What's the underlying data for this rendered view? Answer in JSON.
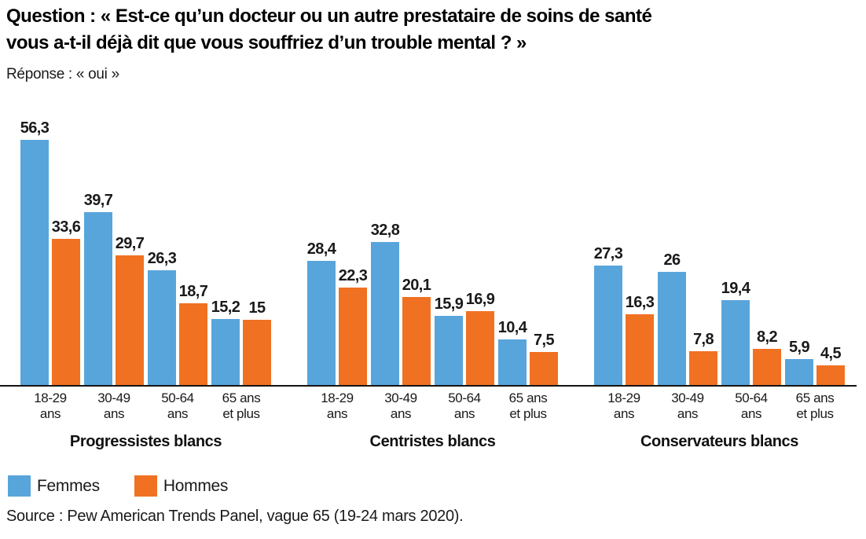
{
  "chart_data": {
    "type": "bar",
    "title": "Question : « Est-ce qu’un docteur ou un autre prestataire de soins de santé vous a-t-il déjà dit que vous souffriez d’un trouble mental ? »",
    "title_lines": [
      "Question : « Est-ce qu’un docteur ou un autre prestataire de soins de santé",
      "vous a-t-il déjà dit que vous souffriez d’un trouble mental ? »"
    ],
    "subtitle": "Réponse : « oui »",
    "source": "Source : Pew American Trends Panel, vague 65 (19-24 mars 2020).",
    "categories": [
      "18-29 ans",
      "30-49 ans",
      "50-64 ans",
      "65 ans et plus"
    ],
    "category_lines": [
      [
        "18-29",
        "ans"
      ],
      [
        "30-49",
        "ans"
      ],
      [
        "50-64",
        "ans"
      ],
      [
        "65 ans",
        "et plus"
      ]
    ],
    "groups": [
      {
        "label": "Progressistes blancs",
        "series": [
          {
            "name": "Femmes",
            "values": [
              56.3,
              39.7,
              26.3,
              15.2
            ]
          },
          {
            "name": "Hommes",
            "values": [
              33.6,
              29.7,
              18.7,
              15
            ]
          }
        ]
      },
      {
        "label": "Centristes blancs",
        "series": [
          {
            "name": "Femmes",
            "values": [
              28.4,
              32.8,
              15.9,
              10.4
            ]
          },
          {
            "name": "Hommes",
            "values": [
              22.3,
              20.1,
              16.9,
              7.5
            ]
          }
        ]
      },
      {
        "label": "Conservateurs blancs",
        "series": [
          {
            "name": "Femmes",
            "values": [
              27.3,
              26,
              19.4,
              5.9
            ]
          },
          {
            "name": "Hommes",
            "values": [
              16.3,
              7.8,
              8.2,
              4.5
            ]
          }
        ]
      }
    ],
    "legend": [
      {
        "label": "Femmes",
        "color": "#58A5DB"
      },
      {
        "label": "Hommes",
        "color": "#F07122"
      }
    ],
    "colors": {
      "femmes": "#58A5DB",
      "hommes": "#F07122",
      "axis": "#141414"
    },
    "ylim": [
      0,
      60
    ],
    "value_labels": true,
    "decimal_separator": ",",
    "grid": false,
    "legend_position": "bottom-left"
  }
}
